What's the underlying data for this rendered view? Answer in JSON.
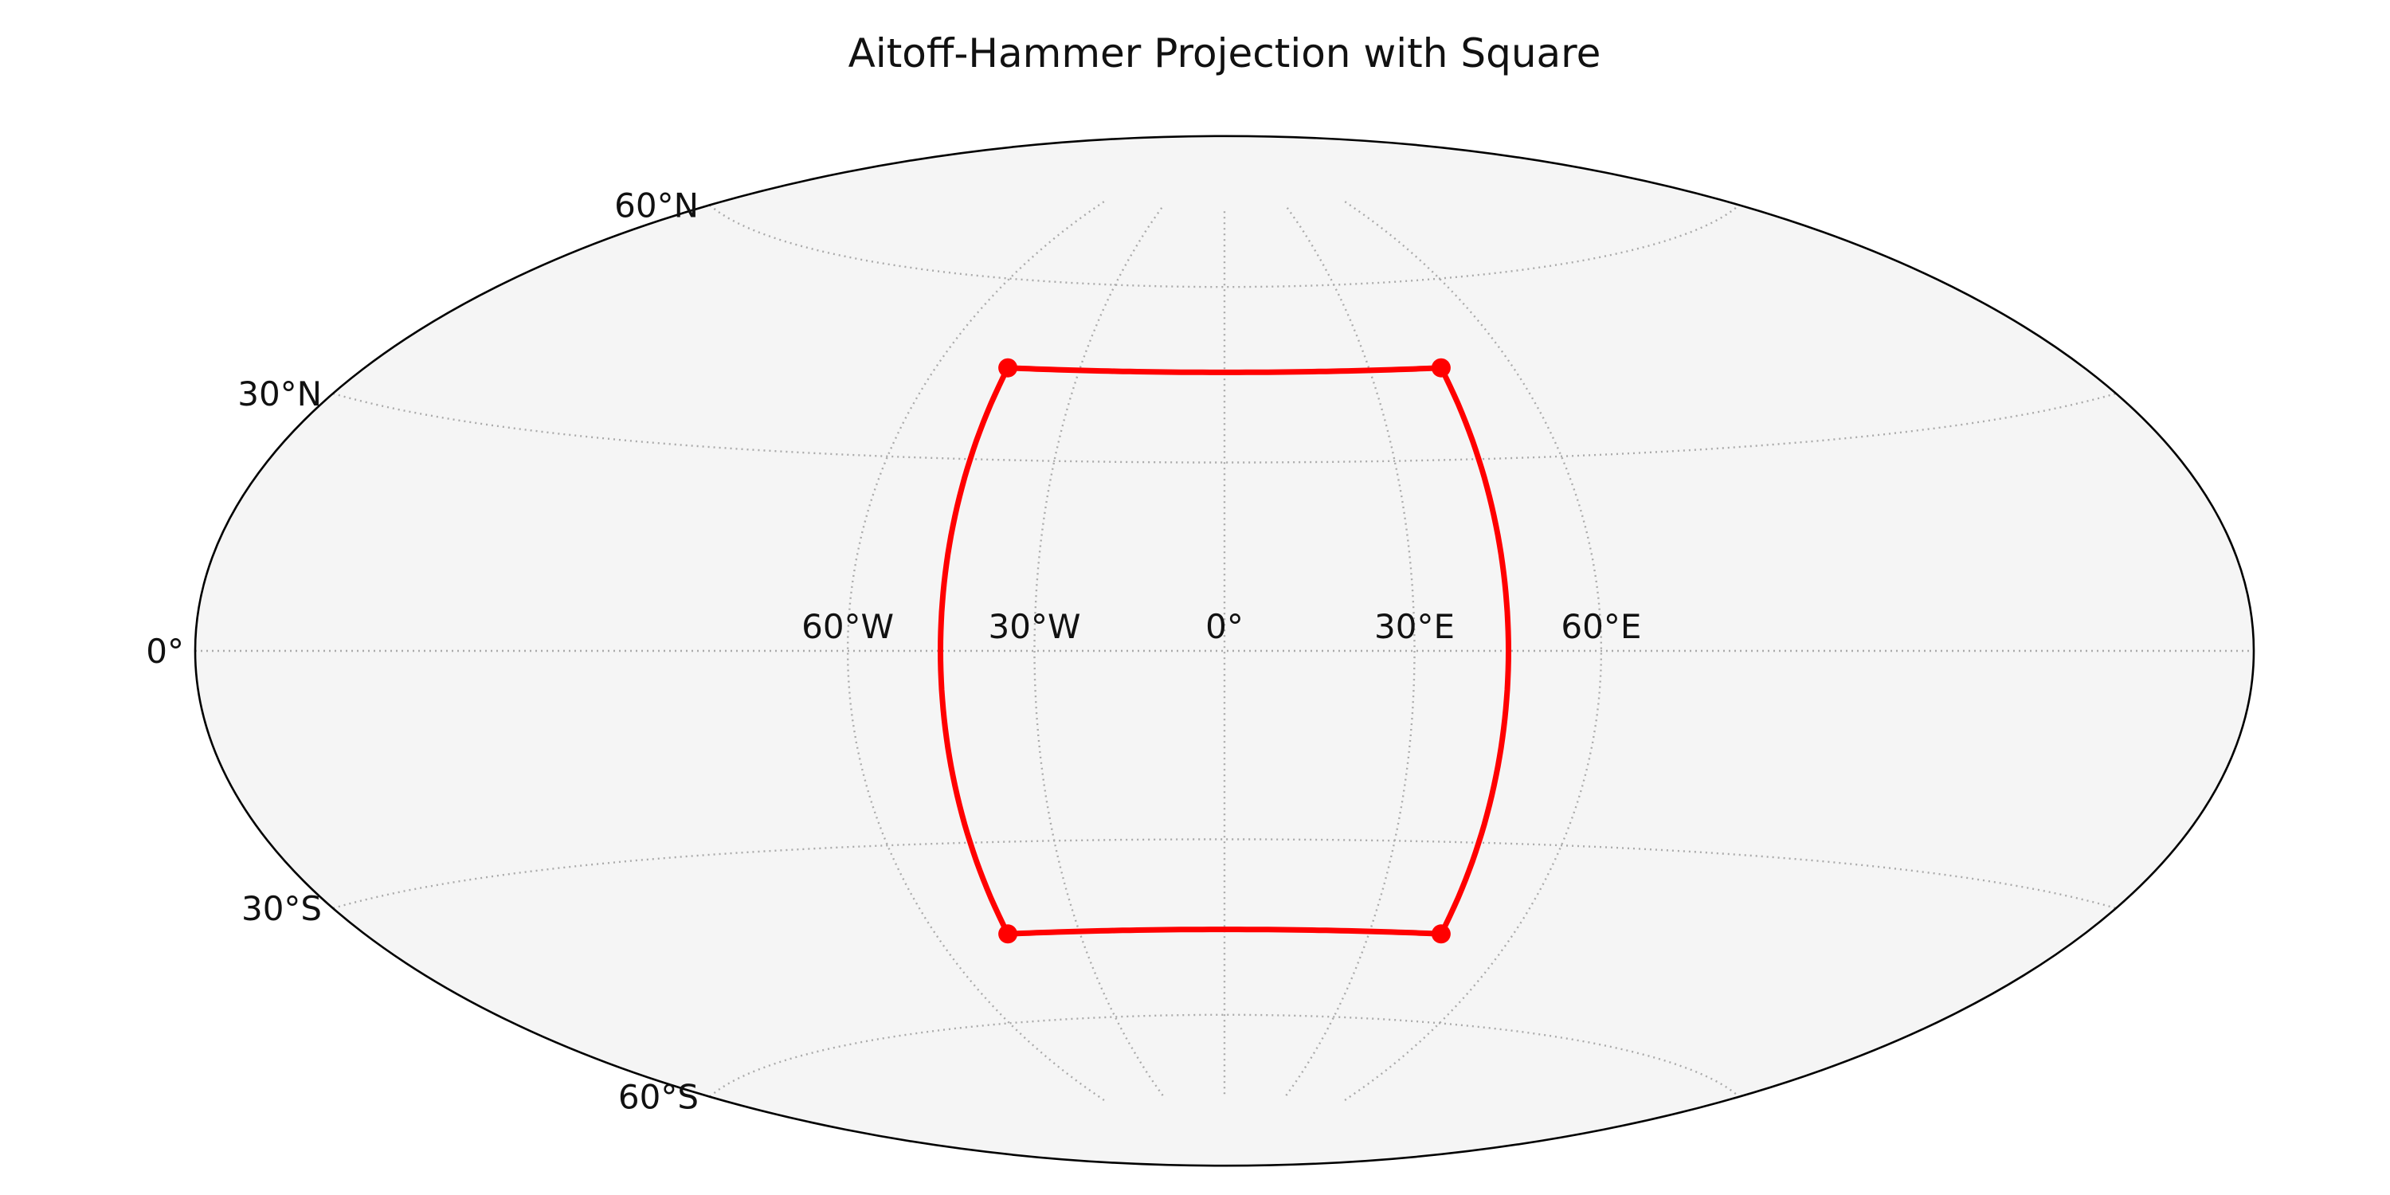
{
  "chart_data": {
    "type": "line",
    "projection": "hammer",
    "title": "Aitoff-Hammer Projection with Square",
    "xlabel": "",
    "ylabel": "",
    "xlim": [
      -180,
      180
    ],
    "ylim": [
      -90,
      90
    ],
    "grid": true,
    "longitude_gridlines": [
      -60,
      -30,
      0,
      30,
      60
    ],
    "latitude_gridlines": [
      -60,
      -30,
      0,
      30,
      60
    ],
    "longitude_tick_labels": [
      "60°W",
      "30°W",
      "0°",
      "30°E",
      "60°E"
    ],
    "latitude_tick_labels": [
      "60°S",
      "30°S",
      "0°",
      "30°N",
      "60°N"
    ],
    "series": [
      {
        "color": "#ff0000",
        "marker": "circle",
        "x": [
          -45,
          45,
          45,
          -45,
          -45
        ],
        "y": [
          45,
          45,
          -45,
          -45,
          45
        ]
      }
    ],
    "colors": {
      "background": "#f5f5f5",
      "frame": "#000000",
      "grid": "#aaaaaa",
      "series": "#ff0000"
    }
  }
}
